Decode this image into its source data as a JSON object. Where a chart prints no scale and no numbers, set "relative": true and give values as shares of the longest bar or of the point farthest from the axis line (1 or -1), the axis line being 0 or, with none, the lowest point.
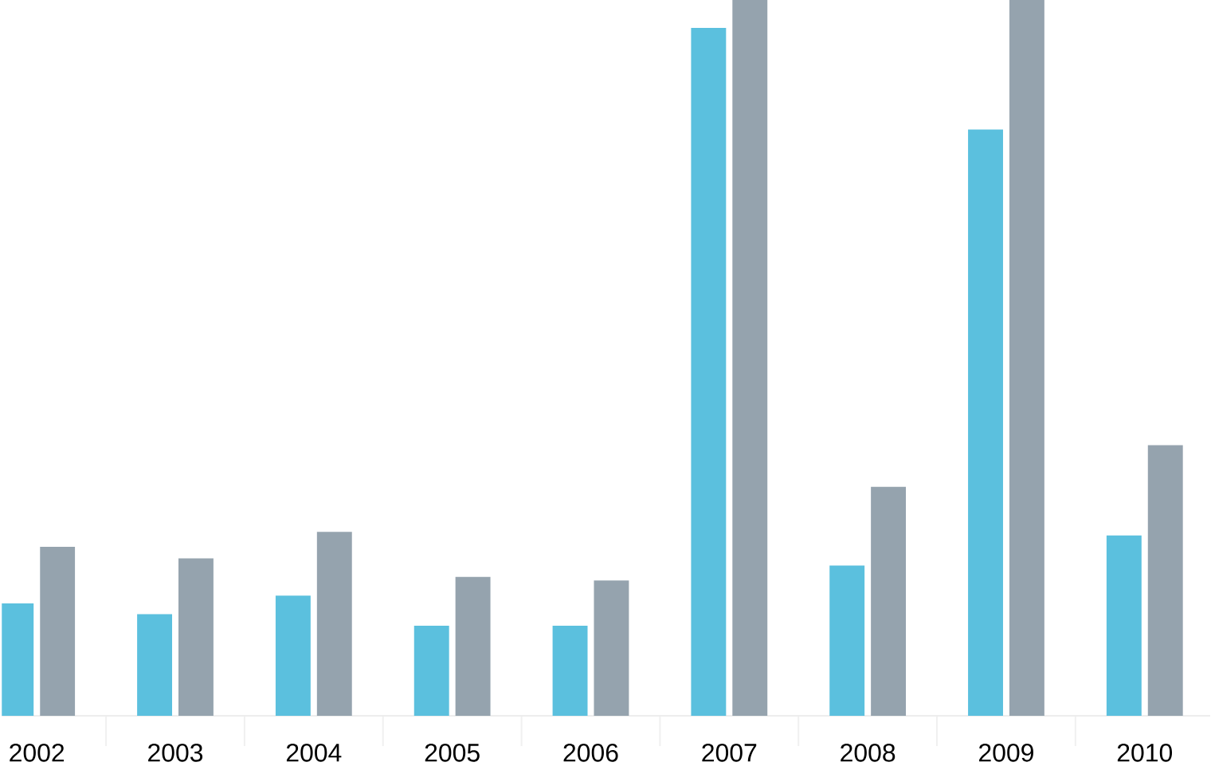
{
  "chart_data": {
    "type": "bar",
    "relative": true,
    "categories": [
      "2002",
      "2003",
      "2004",
      "2005",
      "2006",
      "2007",
      "2008",
      "2009",
      "2010"
    ],
    "series": [
      {
        "color": "#5bc0de",
        "values": [
          0.157,
          0.142,
          0.168,
          0.126,
          0.126,
          0.961,
          0.21,
          0.819,
          0.252
        ]
      },
      {
        "color": "#95a3ae",
        "values": [
          0.236,
          0.22,
          0.257,
          0.194,
          0.189,
          1,
          0.32,
          1,
          0.378
        ]
      }
    ]
  }
}
